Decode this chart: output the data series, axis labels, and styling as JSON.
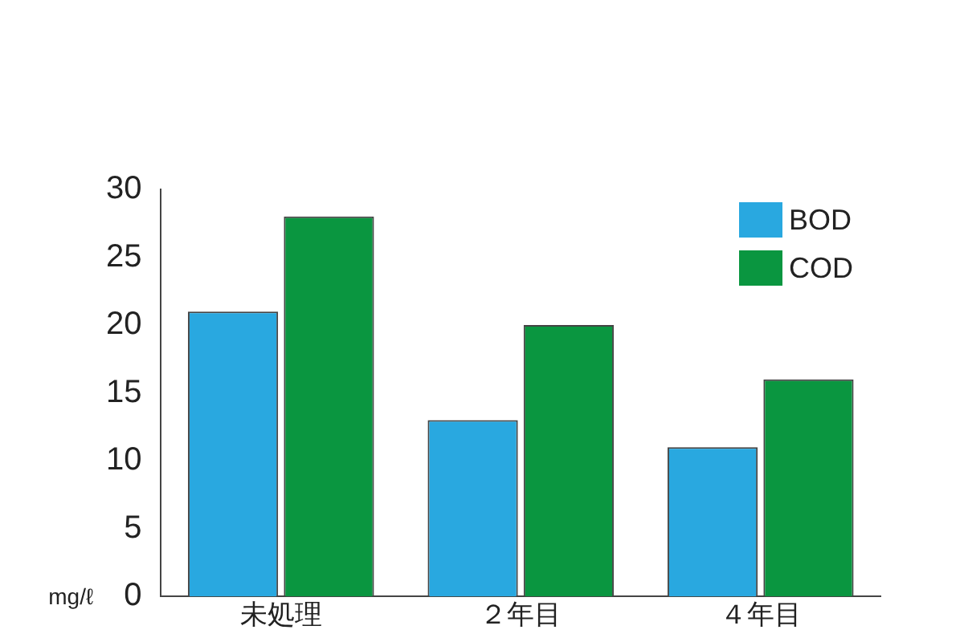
{
  "chart_data": {
    "type": "bar",
    "ylabel": "mg/ℓ",
    "categories": [
      "未処理",
      "２年目",
      "４年目"
    ],
    "series": [
      {
        "name": "BOD",
        "color": "#29a8e0",
        "values": [
          21,
          13,
          11
        ]
      },
      {
        "name": "COD",
        "color": "#0a9640",
        "values": [
          28,
          20,
          16
        ]
      }
    ],
    "ylim": [
      0,
      30
    ],
    "yticks": [
      0,
      5,
      10,
      15,
      20,
      25,
      30
    ],
    "grid": false,
    "legend": "top right"
  }
}
